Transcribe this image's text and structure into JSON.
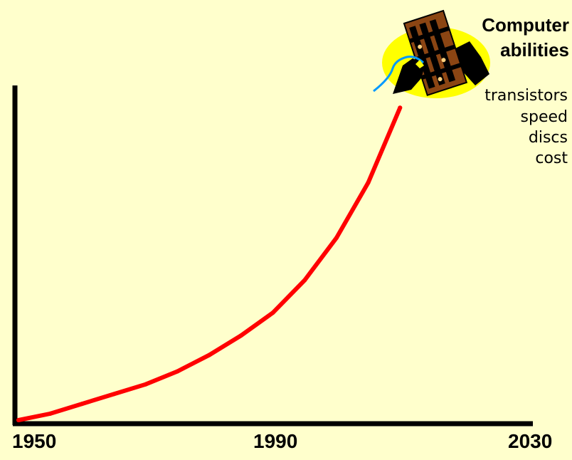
{
  "chart_data": {
    "type": "line",
    "title_lines": [
      "Computer",
      "abilities"
    ],
    "legend_items": [
      "transistors",
      "speed",
      "discs",
      "cost"
    ],
    "xlabel": "",
    "ylabel": "",
    "x_ticks": [
      "1950",
      "1990",
      "2030"
    ],
    "xlim": [
      1950,
      2030
    ],
    "grid": false,
    "series": [
      {
        "color": "#FF0000",
        "x": [
          1950,
          1955,
          1960,
          1965,
          1970,
          1975,
          1980,
          1985,
          1990,
          1995,
          2000,
          2005,
          2010
        ],
        "y": [
          0,
          0.02,
          0.05,
          0.08,
          0.11,
          0.15,
          0.2,
          0.26,
          0.33,
          0.43,
          0.56,
          0.73,
          0.96
        ]
      }
    ],
    "colors": {
      "background": "#FFFFCC",
      "axes": "#000000",
      "curve": "#FF0000",
      "chip_highlight": "#FFFF00"
    },
    "icon": "computer-chip-clipart"
  }
}
